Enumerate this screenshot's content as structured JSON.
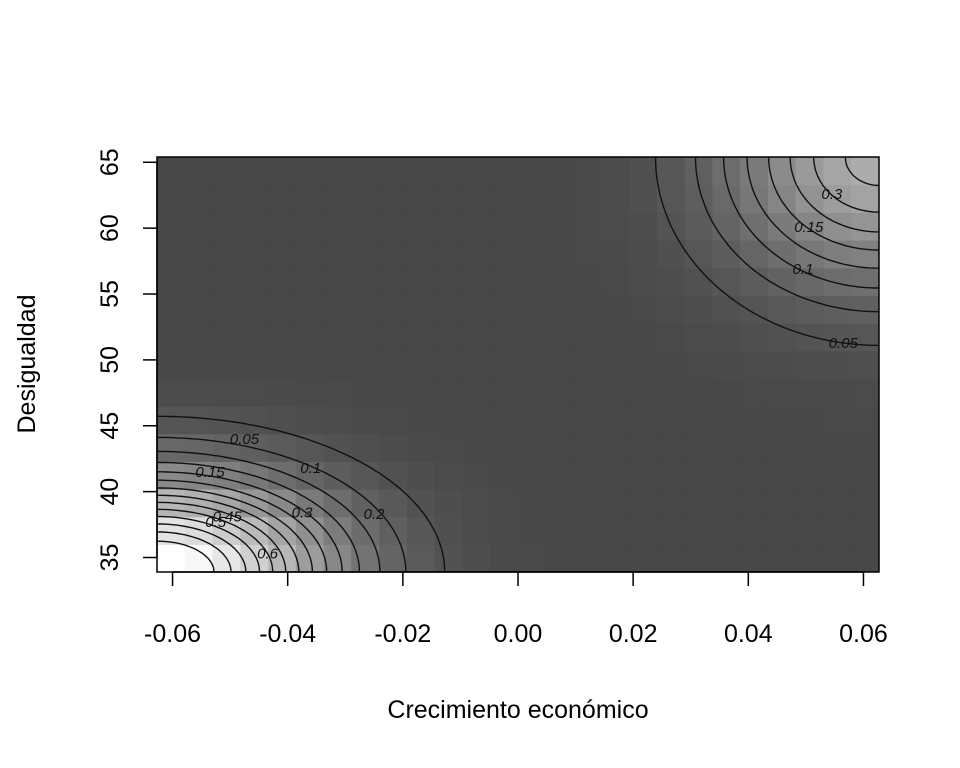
{
  "chart_data": {
    "type": "heatmap",
    "title": "",
    "xlabel": "Crecimiento económico",
    "ylabel": "Desigualdad",
    "xlim": [
      -0.0627,
      0.0627
    ],
    "ylim": [
      33.9,
      65.4
    ],
    "x_ticks": [
      "-0.06",
      "-0.04",
      "-0.02",
      "0.00",
      "0.02",
      "0.04",
      "0.06"
    ],
    "x_tick_values": [
      -0.06,
      -0.04,
      -0.02,
      0.0,
      0.02,
      0.04,
      0.06
    ],
    "y_ticks": [
      "35",
      "40",
      "45",
      "50",
      "55",
      "60",
      "65"
    ],
    "y_tick_values": [
      35,
      40,
      45,
      50,
      55,
      60,
      65
    ],
    "colors": {
      "low": "#474747",
      "high": "#ffffff",
      "contour": "#111111"
    },
    "contour_levels": [
      0.05,
      0.1,
      0.15,
      0.2,
      0.25,
      0.3,
      0.35,
      0.4,
      0.45,
      0.5,
      0.55,
      0.6,
      0.65,
      0.7
    ],
    "contour_labels": [
      {
        "text": "0.05",
        "x": -0.0475,
        "y": 44.0
      },
      {
        "text": "0.1",
        "x": -0.036,
        "y": 41.8
      },
      {
        "text": "0.15",
        "x": -0.0535,
        "y": 41.5
      },
      {
        "text": "0.2",
        "x": -0.025,
        "y": 38.3
      },
      {
        "text": "0.3",
        "x": -0.0375,
        "y": 38.4
      },
      {
        "text": "0.45",
        "x": -0.0505,
        "y": 38.1
      },
      {
        "text": "0.5",
        "x": -0.0525,
        "y": 37.7
      },
      {
        "text": "0.6",
        "x": -0.0435,
        "y": 35.3
      },
      {
        "text": "0.3",
        "x": 0.0545,
        "y": 62.6
      },
      {
        "text": "0.15",
        "x": 0.0505,
        "y": 60.1
      },
      {
        "text": "0.1",
        "x": 0.0495,
        "y": 56.9
      },
      {
        "text": "0.05",
        "x": 0.0565,
        "y": 51.3
      }
    ]
  }
}
